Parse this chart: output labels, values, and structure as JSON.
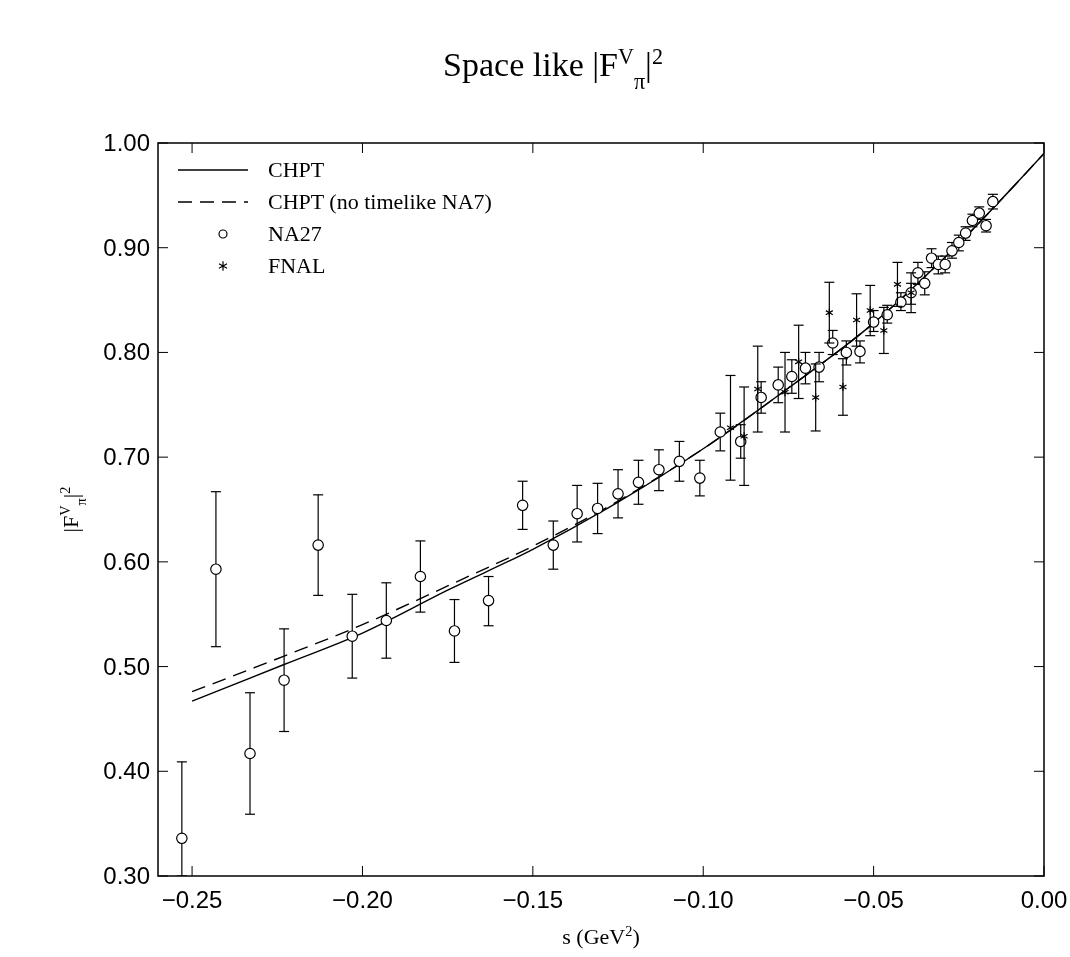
{
  "chart_data": {
    "type": "scatter",
    "title": "Space like |F$^{V}$$_{π}$|$^{2}$",
    "xlabel": "s (GeV$^{2}$)",
    "ylabel": "|F$^{V}$$_{π}$|$^{2}$",
    "xlim": [
      -0.26,
      0
    ],
    "ylim": [
      0.3,
      1.0
    ],
    "xticks": [
      {
        "value": -0.25,
        "label": "−0.25"
      },
      {
        "value": -0.2,
        "label": "−0.20"
      },
      {
        "value": -0.15,
        "label": "−0.15"
      },
      {
        "value": -0.1,
        "label": "−0.10"
      },
      {
        "value": -0.05,
        "label": "−0.05"
      },
      {
        "value": 0,
        "label": "0.00"
      }
    ],
    "yticks": [
      {
        "value": 0.3,
        "label": "0.30"
      },
      {
        "value": 0.4,
        "label": "0.40"
      },
      {
        "value": 0.5,
        "label": "0.50"
      },
      {
        "value": 0.6,
        "label": "0.60"
      },
      {
        "value": 0.7,
        "label": "0.70"
      },
      {
        "value": 0.8,
        "label": "0.80"
      },
      {
        "value": 0.9,
        "label": "0.90"
      },
      {
        "value": 1.0,
        "label": "1.00"
      }
    ],
    "grid": false,
    "legend": "top left",
    "series": [
      {
        "name": "CHPT",
        "type": "line",
        "color": "#000000",
        "marker": "none",
        "line_style": "solid",
        "x": [
          -0.25,
          -0.223,
          -0.2,
          -0.175,
          -0.15,
          -0.125,
          -0.1,
          -0.075,
          -0.05,
          -0.025,
          0
        ],
        "values": [
          0.467,
          0.502,
          0.532,
          0.573,
          0.612,
          0.657,
          0.708,
          0.766,
          0.828,
          0.904,
          0.99
        ]
      },
      {
        "name": "CHPT (no timelike NA7)",
        "type": "line",
        "color": "#000000",
        "marker": "none",
        "line_style": "dashed",
        "x": [
          -0.25,
          -0.223,
          -0.2,
          -0.175,
          -0.15,
          -0.125,
          -0.1,
          -0.075,
          -0.05,
          -0.025,
          0
        ],
        "values": [
          0.476,
          0.51,
          0.54,
          0.577,
          0.615,
          0.658,
          0.708,
          0.766,
          0.828,
          0.904,
          0.99
        ]
      },
      {
        "name": "NA27",
        "color": "#000000",
        "marker": "circle",
        "x": [
          -0.253,
          -0.243,
          -0.233,
          -0.223,
          -0.213,
          -0.203,
          -0.193,
          -0.183,
          -0.173,
          -0.163,
          -0.153,
          -0.144,
          -0.137,
          -0.131,
          -0.125,
          -0.119,
          -0.113,
          -0.107,
          -0.101,
          -0.095,
          -0.089,
          -0.083,
          -0.078,
          -0.074,
          -0.07,
          -0.066,
          -0.062,
          -0.058,
          -0.054,
          -0.05,
          -0.046,
          -0.042,
          -0.039,
          -0.037,
          -0.035,
          -0.033,
          -0.031,
          -0.029,
          -0.027,
          -0.025,
          -0.023,
          -0.021,
          -0.019,
          -0.017,
          -0.015
        ],
        "values": [
          0.336,
          0.593,
          0.417,
          0.487,
          0.616,
          0.529,
          0.544,
          0.586,
          0.534,
          0.563,
          0.654,
          0.616,
          0.646,
          0.651,
          0.665,
          0.676,
          0.688,
          0.696,
          0.68,
          0.724,
          0.715,
          0.757,
          0.769,
          0.777,
          0.785,
          0.786,
          0.809,
          0.8,
          0.801,
          0.829,
          0.836,
          0.848,
          0.857,
          0.876,
          0.866,
          0.89,
          0.884,
          0.884,
          0.897,
          0.905,
          0.914,
          0.926,
          0.933,
          0.921,
          0.944
        ],
        "errors": [
          [
            0.3,
            0.409
          ],
          [
            0.519,
            0.667
          ],
          [
            0.359,
            0.475
          ],
          [
            0.438,
            0.536
          ],
          [
            0.568,
            0.664
          ],
          [
            0.489,
            0.569
          ],
          [
            0.508,
            0.58
          ],
          [
            0.552,
            0.62
          ],
          [
            0.504,
            0.564
          ],
          [
            0.539,
            0.586
          ],
          [
            0.631,
            0.677
          ],
          [
            0.593,
            0.639
          ],
          [
            0.619,
            0.673
          ],
          [
            0.627,
            0.675
          ],
          [
            0.642,
            0.688
          ],
          [
            0.655,
            0.697
          ],
          [
            0.668,
            0.707
          ],
          [
            0.677,
            0.715
          ],
          [
            0.663,
            0.697
          ],
          [
            0.706,
            0.742
          ],
          [
            0.699,
            0.731
          ],
          [
            0.742,
            0.772
          ],
          [
            0.752,
            0.786
          ],
          [
            0.761,
            0.793
          ],
          [
            0.77,
            0.8
          ],
          [
            0.772,
            0.8
          ],
          [
            0.798,
            0.821
          ],
          [
            0.788,
            0.811
          ],
          [
            0.79,
            0.811
          ],
          [
            0.82,
            0.84
          ],
          [
            0.828,
            0.845
          ],
          [
            0.84,
            0.857
          ],
          [
            0.846,
            0.866
          ],
          [
            0.865,
            0.886
          ],
          [
            0.855,
            0.877
          ],
          [
            0.881,
            0.899
          ],
          [
            0.875,
            0.892
          ],
          [
            0.876,
            0.892
          ],
          [
            0.89,
            0.905
          ],
          [
            0.897,
            0.912
          ],
          [
            0.907,
            0.92
          ],
          [
            0.92,
            0.932
          ],
          [
            0.927,
            0.939
          ],
          [
            0.915,
            0.927
          ],
          [
            0.937,
            0.951
          ]
        ]
      },
      {
        "name": "FNAL",
        "color": "#000000",
        "marker": "cross",
        "x": [
          -0.092,
          -0.088,
          -0.084,
          -0.076,
          -0.072,
          -0.067,
          -0.063,
          -0.059,
          -0.055,
          -0.051,
          -0.047,
          -0.043,
          -0.039
        ],
        "values": [
          0.728,
          0.72,
          0.765,
          0.762,
          0.791,
          0.757,
          0.838,
          0.767,
          0.831,
          0.84,
          0.821,
          0.865,
          0.857
        ],
        "errors": [
          [
            0.678,
            0.778
          ],
          [
            0.673,
            0.767
          ],
          [
            0.724,
            0.806
          ],
          [
            0.724,
            0.8
          ],
          [
            0.756,
            0.826
          ],
          [
            0.725,
            0.789
          ],
          [
            0.809,
            0.867
          ],
          [
            0.74,
            0.794
          ],
          [
            0.806,
            0.856
          ],
          [
            0.816,
            0.864
          ],
          [
            0.799,
            0.843
          ],
          [
            0.844,
            0.886
          ],
          [
            0.838,
            0.876
          ]
        ]
      }
    ]
  }
}
